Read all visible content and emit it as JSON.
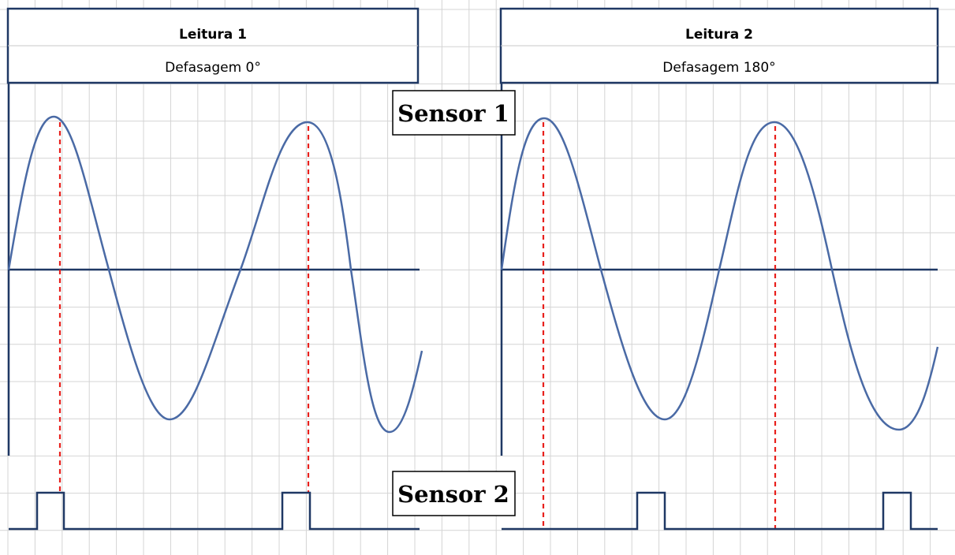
{
  "panels": [
    {
      "title": "Leitura 1",
      "subtitle": "Defasagem 0°"
    },
    {
      "title": "Leitura 2",
      "subtitle": "Defasagem 180°"
    }
  ],
  "labels": {
    "sensor1": "Sensor 1",
    "sensor2": "Sensor 2"
  },
  "colors": {
    "wave": "#4a6aa5",
    "axis": "#1f3864",
    "pulse": "#1f3864",
    "marker": "#e8201c",
    "grid": "#d4d4d4",
    "box_border": "#1f3864"
  }
}
